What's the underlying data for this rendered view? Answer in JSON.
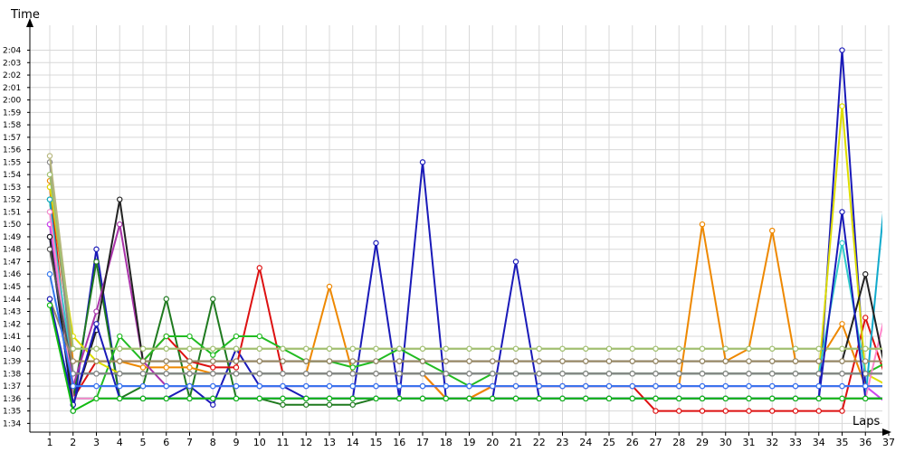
{
  "chart_data": {
    "type": "line",
    "title": "",
    "xlabel": "Laps",
    "ylabel": "Time",
    "x": [
      1,
      2,
      3,
      4,
      5,
      6,
      7,
      8,
      9,
      10,
      11,
      12,
      13,
      14,
      15,
      16,
      17,
      18,
      19,
      20,
      21,
      22,
      23,
      24,
      25,
      26,
      27,
      28,
      29,
      30,
      31,
      32,
      33,
      34,
      35,
      36,
      37
    ],
    "xlim": [
      1,
      37
    ],
    "ylim": [
      93.3,
      126
    ],
    "y_tick_values": [
      94,
      95,
      96,
      97,
      98,
      99,
      100,
      101,
      102,
      103,
      104,
      105,
      106,
      107,
      108,
      109,
      110,
      111,
      112,
      113,
      114,
      115,
      116,
      117,
      118,
      119,
      120,
      121,
      122,
      123,
      124
    ],
    "y_tick_labels": [
      "1:34",
      "1:35",
      "1:36",
      "1:37",
      "1:38",
      "1:39",
      "1:40",
      "1:41",
      "1:42",
      "1:43",
      "1:44",
      "1:45",
      "1:46",
      "1:47",
      "1:48",
      "1:49",
      "1:50",
      "1:51",
      "1:52",
      "1:53",
      "1:54",
      "1:55",
      "1:56",
      "1:57",
      "1:58",
      "1:59",
      "2:00",
      "2:01",
      "2:02",
      "2:03",
      "2:04"
    ],
    "grid": true,
    "legend": "none",
    "series": [
      {
        "color": "#1a1ab8",
        "values": [
          109,
          95,
          108,
          96,
          96,
          96,
          97,
          95.5,
          100,
          97,
          97,
          96,
          96,
          96,
          108.5,
          96,
          115,
          96,
          96,
          96,
          107,
          96,
          96,
          96,
          96,
          96,
          96,
          96,
          96,
          96,
          96,
          96,
          96,
          96,
          124,
          97,
          97
        ]
      },
      {
        "color": "#1f7a1f",
        "values": [
          112,
          96,
          107,
          96,
          97,
          104,
          96,
          104,
          96,
          96,
          95.5,
          95.5,
          95.5,
          95.5,
          96,
          96,
          96,
          96,
          96,
          96,
          96,
          96,
          96,
          96,
          96,
          96,
          96,
          96,
          96,
          96,
          96,
          96,
          96,
          96,
          96,
          96,
          96
        ]
      },
      {
        "color": "#dd1111",
        "values": [
          113,
          96,
          99,
          99,
          99,
          101,
          99,
          98.5,
          98.5,
          106.5,
          98,
          98,
          98,
          98,
          98,
          98,
          98,
          96,
          96,
          97,
          97,
          97,
          97,
          97,
          97,
          97,
          95,
          95,
          95,
          95,
          95,
          95,
          95,
          95,
          95,
          102.5,
          97
        ]
      },
      {
        "color": "#ee8800",
        "values": [
          113.5,
          99,
          99,
          99,
          98.5,
          98.5,
          98.5,
          98,
          98,
          98,
          98,
          98,
          105,
          98,
          98,
          98,
          98,
          96,
          96,
          97,
          97,
          97,
          97,
          97,
          97,
          97,
          97,
          97,
          110,
          99,
          100,
          109.5,
          99,
          99,
          102,
          97,
          97
        ]
      },
      {
        "color": "#22bb22",
        "values": [
          112,
          96,
          96,
          101,
          99,
          101,
          101,
          99.5,
          101,
          101,
          100,
          99,
          99,
          98.5,
          99,
          100,
          99,
          98,
          97,
          98,
          98,
          98,
          98,
          98,
          98,
          98,
          98,
          98,
          98,
          98,
          98,
          98,
          98,
          98,
          98,
          98,
          99
        ]
      },
      {
        "color": "#dddd00",
        "values": [
          113,
          101,
          99,
          98,
          98,
          98,
          98,
          98,
          98,
          98,
          98,
          98,
          98,
          98,
          98,
          98,
          98,
          98,
          98,
          98,
          98,
          98,
          98,
          98,
          98,
          98,
          98,
          98,
          98,
          98,
          98,
          98,
          98,
          98,
          119.5,
          98,
          97
        ]
      },
      {
        "color": "#11aacc",
        "values": [
          112,
          96,
          96,
          96,
          96,
          96,
          96,
          96,
          96,
          96,
          96,
          96,
          96,
          96,
          96,
          96,
          96,
          96,
          96,
          96,
          96,
          96,
          96,
          96,
          96,
          96,
          96,
          96,
          96,
          96,
          96,
          96,
          96,
          96,
          96,
          96,
          115.5
        ]
      },
      {
        "color": "#33cccc",
        "values": [
          111,
          98,
          98,
          98,
          98,
          98,
          98,
          98,
          98,
          98,
          98,
          98,
          98,
          98,
          98,
          98,
          98,
          98,
          98,
          98,
          98,
          98,
          98,
          98,
          98,
          98,
          98,
          98,
          98,
          98,
          98,
          98,
          98,
          98,
          108.5,
          98,
          98
        ]
      },
      {
        "color": "#aa33aa",
        "values": [
          110,
          97,
          103,
          110,
          99,
          97,
          97,
          97,
          97,
          97,
          97,
          97,
          97,
          97,
          97,
          97,
          97,
          97,
          97,
          97,
          97,
          97,
          97,
          97,
          97,
          97,
          97,
          97,
          97,
          97,
          97,
          97,
          97,
          97,
          97,
          97,
          97
        ]
      },
      {
        "color": "#cc44ee",
        "values": [
          110,
          97,
          97,
          97,
          97,
          97,
          97,
          97,
          97,
          97,
          97,
          97,
          97,
          97,
          97,
          97,
          97,
          97,
          97,
          97,
          97,
          97,
          97,
          97,
          97,
          97,
          97,
          97,
          97,
          97,
          97,
          97,
          97,
          97,
          97,
          97,
          95.5
        ]
      },
      {
        "color": "#ff88cc",
        "values": [
          111,
          96,
          96,
          96,
          96,
          96,
          96,
          96,
          96,
          96,
          96,
          96,
          96,
          96,
          96,
          96,
          96,
          96,
          96,
          96,
          96,
          96,
          96,
          96,
          96,
          96,
          96,
          96,
          96,
          96,
          96,
          96,
          96,
          96,
          96,
          96,
          104
        ]
      },
      {
        "color": "#222222",
        "values": [
          109,
          95.5,
          101.5,
          112,
          99,
          99,
          99,
          99,
          99,
          99,
          99,
          99,
          99,
          99,
          99,
          99,
          99,
          99,
          99,
          99,
          99,
          99,
          99,
          99,
          99,
          99,
          99,
          99,
          99,
          99,
          99,
          99,
          99,
          99,
          99,
          106,
          97
        ]
      },
      {
        "color": "#555555",
        "values": [
          108,
          98,
          98,
          98,
          98,
          98,
          98,
          98,
          98,
          98,
          98,
          98,
          98,
          98,
          98,
          98,
          98,
          98,
          98,
          98,
          98,
          98,
          98,
          98,
          98,
          98,
          98,
          98,
          98,
          98,
          98,
          98,
          98,
          98,
          98,
          98,
          98
        ]
      },
      {
        "color": "#888888",
        "values": [
          115,
          98,
          98,
          98,
          98,
          98,
          98,
          98,
          98,
          98,
          98,
          98,
          98,
          98,
          98,
          98,
          98,
          98,
          98,
          98,
          98,
          98,
          98,
          98,
          98,
          98,
          98,
          98,
          98,
          98,
          98,
          98,
          98,
          98,
          98,
          98,
          98
        ]
      },
      {
        "color": "#b8b880",
        "values": [
          115.5,
          100,
          100,
          100,
          100,
          100,
          100,
          100,
          100,
          100,
          100,
          100,
          100,
          100,
          100,
          100,
          100,
          100,
          100,
          100,
          100,
          100,
          100,
          100,
          100,
          100,
          100,
          100,
          100,
          100,
          100,
          100,
          100,
          100,
          100,
          100,
          100
        ]
      },
      {
        "color": "#a0c070",
        "values": [
          114,
          100,
          100,
          100,
          100,
          100,
          100,
          100,
          100,
          100,
          100,
          100,
          100,
          100,
          100,
          100,
          100,
          100,
          100,
          100,
          100,
          100,
          100,
          100,
          100,
          100,
          100,
          100,
          100,
          100,
          100,
          100,
          100,
          100,
          100,
          100,
          100
        ]
      },
      {
        "color": "#9a8a66",
        "values": [
          104,
          99,
          99,
          99,
          99,
          99,
          99,
          99,
          99,
          99,
          99,
          99,
          99,
          99,
          99,
          99,
          99,
          99,
          99,
          99,
          99,
          99,
          99,
          99,
          99,
          99,
          99,
          99,
          99,
          99,
          99,
          99,
          99,
          99,
          99,
          99,
          99
        ]
      },
      {
        "color": "#1a1ab8",
        "values": [
          104,
          95.5,
          102,
          96,
          96,
          96,
          96,
          96,
          96,
          96,
          96,
          96,
          96,
          96,
          96,
          96,
          96,
          96,
          96,
          96,
          96,
          96,
          96,
          96,
          96,
          96,
          96,
          96,
          96,
          96,
          96,
          96,
          96,
          96,
          111,
          96,
          96
        ]
      },
      {
        "color": "#11bb11",
        "values": [
          103.5,
          95,
          96,
          96,
          96,
          96,
          96,
          96,
          96,
          96,
          96,
          96,
          96,
          96,
          96,
          96,
          96,
          96,
          96,
          96,
          96,
          96,
          96,
          96,
          96,
          96,
          96,
          96,
          96,
          96,
          96,
          96,
          96,
          96,
          96,
          96,
          96
        ]
      },
      {
        "color": "#3377ee",
        "values": [
          106,
          97,
          97,
          97,
          97,
          97,
          97,
          97,
          97,
          97,
          97,
          97,
          97,
          97,
          97,
          97,
          97,
          97,
          97,
          97,
          97,
          97,
          97,
          97,
          97,
          97,
          97,
          97,
          97,
          97,
          97,
          97,
          97,
          97,
          97,
          97,
          97
        ]
      }
    ]
  }
}
